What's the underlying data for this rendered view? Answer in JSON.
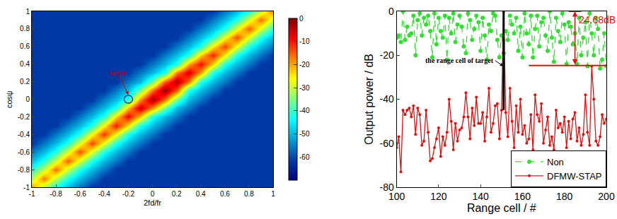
{
  "chart_data": [
    {
      "type": "heatmap",
      "x_label": "2fd/fr",
      "y_label": "cosψ",
      "x": [
        -1,
        -0.9,
        -0.8,
        -0.7,
        -0.6,
        -0.5,
        -0.4,
        -0.3,
        -0.2,
        -0.1,
        0,
        0.1,
        0.2,
        0.3,
        0.4,
        0.5,
        0.6,
        0.7,
        0.8,
        0.9,
        1
      ],
      "y": [
        -1,
        -0.9,
        -0.8,
        -0.7,
        -0.6,
        -0.5,
        -0.4,
        -0.3,
        -0.2,
        -0.1,
        0,
        0.1,
        0.2,
        0.3,
        0.4,
        0.5,
        0.6,
        0.7,
        0.8,
        0.9,
        1
      ],
      "z": [
        [
          -18,
          -32,
          -42,
          -50,
          -56,
          -62,
          -62,
          -62,
          -62,
          -62,
          -62,
          -62,
          -62,
          -62,
          -62,
          -62,
          -62,
          -62,
          -62,
          -62,
          -62
        ],
        [
          -32,
          -17,
          -31,
          -42,
          -50,
          -56,
          -62,
          -62,
          -62,
          -62,
          -62,
          -62,
          -62,
          -62,
          -62,
          -62,
          -62,
          -62,
          -62,
          -62,
          -62
        ],
        [
          -42,
          -31,
          -16,
          -30,
          -42,
          -50,
          -56,
          -62,
          -62,
          -62,
          -62,
          -62,
          -62,
          -62,
          -62,
          -62,
          -62,
          -62,
          -62,
          -62,
          -62
        ],
        [
          -50,
          -42,
          -30,
          -15,
          -29,
          -42,
          -50,
          -56,
          -62,
          -62,
          -62,
          -62,
          -62,
          -62,
          -62,
          -62,
          -62,
          -62,
          -62,
          -62,
          -62
        ],
        [
          -56,
          -50,
          -42,
          -29,
          -14,
          -28,
          -42,
          -50,
          -56,
          -62,
          -62,
          -62,
          -62,
          -62,
          -62,
          -62,
          -62,
          -62,
          -62,
          -62,
          -62
        ],
        [
          -62,
          -56,
          -50,
          -42,
          -28,
          -13,
          -27,
          -42,
          -50,
          -56,
          -62,
          -62,
          -62,
          -62,
          -62,
          -62,
          -62,
          -62,
          -62,
          -62,
          -62
        ],
        [
          -62,
          -62,
          -56,
          -50,
          -42,
          -27,
          -12,
          -26,
          -42,
          -50,
          -56,
          -62,
          -62,
          -62,
          -62,
          -62,
          -62,
          -62,
          -62,
          -62,
          -62
        ],
        [
          -62,
          -62,
          -62,
          -56,
          -50,
          -42,
          -26,
          -10,
          -24,
          -42,
          -50,
          -56,
          -62,
          -62,
          -62,
          -62,
          -62,
          -62,
          -62,
          -62,
          -62
        ],
        [
          -62,
          -62,
          -62,
          -62,
          -56,
          -50,
          -42,
          -24,
          -8,
          -22,
          -42,
          -50,
          -56,
          -62,
          -62,
          -62,
          -62,
          -62,
          -62,
          -62,
          -62
        ],
        [
          -62,
          -62,
          -62,
          -62,
          -62,
          -56,
          -50,
          -42,
          -22,
          -5,
          -19,
          -36,
          -50,
          -56,
          -62,
          -62,
          -62,
          -62,
          -62,
          -62,
          -62
        ],
        [
          -62,
          -62,
          -62,
          -62,
          -62,
          -62,
          -56,
          -50,
          -42,
          -19,
          -2,
          -16,
          -36,
          -50,
          -56,
          -62,
          -62,
          -62,
          -62,
          -62,
          -62
        ],
        [
          -62,
          -62,
          -62,
          -62,
          -62,
          -62,
          -62,
          -56,
          -50,
          -36,
          -16,
          -1,
          -15,
          -42,
          -50,
          -56,
          -62,
          -62,
          -62,
          -62,
          -62
        ],
        [
          -62,
          -62,
          -62,
          -62,
          -62,
          -62,
          -62,
          -62,
          -56,
          -50,
          -36,
          -15,
          -3,
          -17,
          -42,
          -50,
          -56,
          -62,
          -62,
          -62,
          -62
        ],
        [
          -62,
          -62,
          -62,
          -62,
          -62,
          -62,
          -62,
          -62,
          -62,
          -56,
          -50,
          -42,
          -17,
          -6,
          -20,
          -42,
          -50,
          -56,
          -62,
          -62,
          -62
        ],
        [
          -62,
          -62,
          -62,
          -62,
          -62,
          -62,
          -62,
          -62,
          -62,
          -62,
          -56,
          -50,
          -42,
          -20,
          -9,
          -23,
          -42,
          -50,
          -56,
          -62,
          -62
        ],
        [
          -62,
          -62,
          -62,
          -62,
          -62,
          -62,
          -62,
          -62,
          -62,
          -62,
          -62,
          -56,
          -50,
          -42,
          -23,
          -11,
          -25,
          -42,
          -50,
          -56,
          -62
        ],
        [
          -62,
          -62,
          -62,
          -62,
          -62,
          -62,
          -62,
          -62,
          -62,
          -62,
          -62,
          -62,
          -56,
          -50,
          -42,
          -25,
          -13,
          -27,
          -42,
          -50,
          -56
        ],
        [
          -62,
          -62,
          -62,
          -62,
          -62,
          -62,
          -62,
          -62,
          -62,
          -62,
          -62,
          -62,
          -62,
          -56,
          -50,
          -42,
          -27,
          -14,
          -28,
          -42,
          -50
        ],
        [
          -62,
          -62,
          -62,
          -62,
          -62,
          -62,
          -62,
          -62,
          -62,
          -62,
          -62,
          -62,
          -62,
          -62,
          -56,
          -50,
          -42,
          -28,
          -15,
          -29,
          -42
        ],
        [
          -62,
          -62,
          -62,
          -62,
          -62,
          -62,
          -62,
          -62,
          -62,
          -62,
          -62,
          -62,
          -62,
          -62,
          -62,
          -56,
          -50,
          -42,
          -29,
          -16,
          -30
        ],
        [
          -62,
          -62,
          -62,
          -62,
          -62,
          -62,
          -62,
          -62,
          -62,
          -62,
          -62,
          -62,
          -62,
          -62,
          -62,
          -62,
          -56,
          -50,
          -42,
          -30,
          -17
        ]
      ],
      "colorbar_range": [
        -70,
        0
      ],
      "colorbar_ticks": [
        -60,
        -50,
        -40,
        -30,
        -20,
        -10,
        0
      ],
      "xlim": [
        -1,
        1
      ],
      "xticks": [
        -1,
        -0.8,
        -0.6,
        -0.4,
        -0.2,
        0,
        0.2,
        0.4,
        0.6,
        0.8,
        1
      ],
      "ylim": [
        -1,
        1
      ],
      "yticks": [
        -1,
        -0.8,
        -0.6,
        -0.4,
        -0.2,
        0,
        0.2,
        0.4,
        0.6,
        0.8,
        1
      ],
      "annotations": [
        {
          "text": "target",
          "x": -0.2,
          "y": 0
        }
      ]
    },
    {
      "type": "line",
      "x_label": "Range cell / #",
      "y_label": "Output power / dB",
      "x": [
        100,
        101,
        102,
        103,
        104,
        105,
        106,
        107,
        108,
        109,
        110,
        111,
        112,
        113,
        114,
        115,
        116,
        117,
        118,
        119,
        120,
        121,
        122,
        123,
        124,
        125,
        126,
        127,
        128,
        129,
        130,
        131,
        132,
        133,
        134,
        135,
        136,
        137,
        138,
        139,
        140,
        141,
        142,
        143,
        144,
        145,
        146,
        147,
        148,
        149,
        150,
        151,
        152,
        153,
        154,
        155,
        156,
        157,
        158,
        159,
        160,
        161,
        162,
        163,
        164,
        165,
        166,
        167,
        168,
        169,
        170,
        171,
        172,
        173,
        174,
        175,
        176,
        177,
        178,
        179,
        180,
        181,
        182,
        183,
        184,
        185,
        186,
        187,
        188,
        189,
        190,
        191,
        192,
        193,
        194,
        195,
        196,
        197,
        198,
        199,
        200
      ],
      "series": [
        {
          "name": "Non",
          "color": "#33dd33",
          "line_style": "dashed",
          "marker": "circle",
          "values": [
            -12,
            -11,
            -14,
            0,
            -13,
            -7,
            -11,
            -10,
            -2,
            -20,
            -4,
            -1,
            -11,
            -3,
            -6,
            -2,
            -9,
            -21,
            -1,
            -15,
            -3,
            -9,
            -12,
            -2,
            -22,
            -3,
            -10,
            -1,
            -14,
            -6,
            -2,
            -7,
            -16,
            -19,
            -1,
            -4,
            -13,
            -8,
            -2,
            -5,
            -18,
            -3,
            -11,
            -22,
            -6,
            -9,
            -1,
            -2,
            -13,
            -21,
            -11,
            -19,
            -9,
            -13,
            -2,
            -6,
            -10,
            -3,
            -18,
            -7,
            -21,
            -1,
            -10,
            -15,
            -2,
            -21,
            -8,
            -2,
            -16,
            -5,
            -3,
            -11,
            -18,
            0,
            -12,
            -23,
            -3,
            -9,
            -14,
            -1,
            -6,
            -24,
            -5,
            -7,
            -15,
            -10,
            -24,
            -3,
            -20,
            -12,
            -5,
            -25,
            -1,
            -10,
            -20,
            -3,
            -8,
            -26,
            -22,
            -10,
            -25
          ]
        },
        {
          "name": "DFMW-STAP",
          "color": "#dd1111",
          "line_style": "solid",
          "marker": "circle",
          "values": [
            -62,
            -57,
            -73,
            -45,
            -47,
            -45,
            -44,
            -48,
            -43,
            -56,
            -44,
            -47,
            -61,
            -59,
            -45,
            -55,
            -68,
            -67,
            -62,
            -58,
            -53,
            -66,
            -57,
            -61,
            -55,
            -40,
            -50,
            -63,
            -51,
            -59,
            -54,
            -53,
            -48,
            -37,
            -48,
            -58,
            -44,
            -52,
            -39,
            -51,
            -51,
            -46,
            -59,
            -48,
            -35,
            -55,
            -51,
            -43,
            -42,
            -58,
            -45,
            0,
            -46,
            -57,
            -35,
            -50,
            -62,
            -43,
            -55,
            -40,
            -56,
            -52,
            -60,
            -58,
            -47,
            -63,
            -38,
            -47,
            -50,
            -42,
            -60,
            -54,
            -48,
            -61,
            -57,
            -63,
            -45,
            -53,
            -51,
            -55,
            -48,
            -62,
            -50,
            -58,
            -49,
            -46,
            -59,
            -53,
            -61,
            -56,
            -38,
            -55,
            -61,
            -25,
            -40,
            -59,
            -61,
            -57,
            -47,
            -51,
            -49
          ]
        }
      ],
      "xlim": [
        100,
        200
      ],
      "xticks": [
        100,
        120,
        140,
        160,
        180,
        200
      ],
      "ylim": [
        -80,
        0
      ],
      "yticks": [
        -80,
        -60,
        -40,
        -20,
        0
      ],
      "legend": "lower right",
      "annotations": [
        {
          "text": "the range cell of target",
          "x": 151,
          "y": -25
        }
      ],
      "target_marker": {
        "x": 151,
        "top": 0,
        "bottom": -45
      },
      "measurement": {
        "text": "24.68dB",
        "x": 185,
        "top": 0,
        "bottom": -24.68,
        "line_from": 163
      }
    }
  ]
}
